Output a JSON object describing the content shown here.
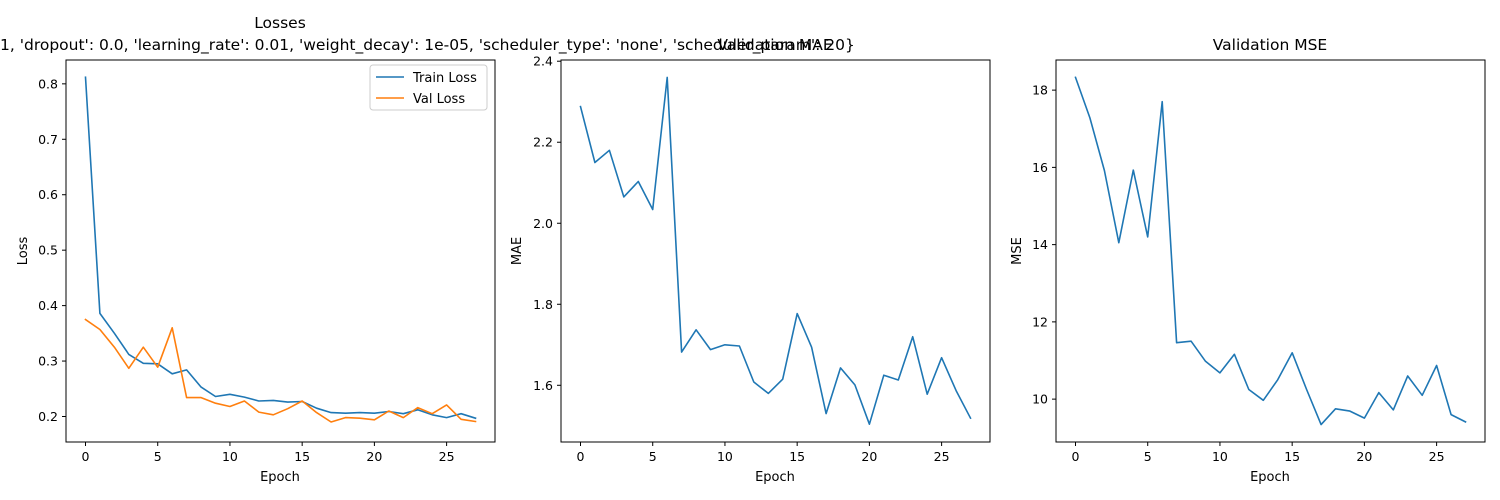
{
  "figure": {
    "overlay_text": "1, 'dropout': 0.0, 'learning_rate': 0.01, 'weight_decay': 1e-05, 'scheduler_type': 'none', 'scheduler_param': 20}"
  },
  "chart_data": [
    {
      "type": "line",
      "title": "Losses",
      "xlabel": "Epoch",
      "ylabel": "Loss",
      "xlim": [
        -1.35,
        28.35
      ],
      "ylim": [
        0.154,
        0.843
      ],
      "xticks": [
        0,
        5,
        10,
        15,
        20,
        25
      ],
      "yticks": [
        0.2,
        0.3,
        0.4,
        0.5,
        0.6,
        0.7,
        0.8
      ],
      "ytick_labels": [
        "0.2",
        "0.3",
        "0.4",
        "0.5",
        "0.6",
        "0.7",
        "0.8"
      ],
      "legend": "top-right",
      "x": [
        0,
        1,
        2,
        3,
        4,
        5,
        6,
        7,
        8,
        9,
        10,
        11,
        12,
        13,
        14,
        15,
        16,
        17,
        18,
        19,
        20,
        21,
        22,
        23,
        24,
        25,
        26,
        27
      ],
      "series": [
        {
          "name": "Train Loss",
          "color": "#1f77b4",
          "values": [
            0.812,
            0.386,
            0.35,
            0.312,
            0.296,
            0.295,
            0.277,
            0.284,
            0.253,
            0.236,
            0.24,
            0.235,
            0.228,
            0.229,
            0.226,
            0.227,
            0.215,
            0.207,
            0.206,
            0.207,
            0.206,
            0.209,
            0.205,
            0.212,
            0.203,
            0.198,
            0.205,
            0.197
          ]
        },
        {
          "name": "Val Loss",
          "color": "#ff7f0e",
          "values": [
            0.375,
            0.357,
            0.325,
            0.287,
            0.325,
            0.289,
            0.36,
            0.234,
            0.234,
            0.224,
            0.218,
            0.228,
            0.208,
            0.203,
            0.214,
            0.228,
            0.207,
            0.19,
            0.198,
            0.197,
            0.194,
            0.21,
            0.198,
            0.216,
            0.205,
            0.221,
            0.195,
            0.191
          ]
        }
      ]
    },
    {
      "type": "line",
      "title": "Validation MAE",
      "xlabel": "Epoch",
      "ylabel": "MAE",
      "xlim": [
        -1.35,
        28.35
      ],
      "ylim": [
        1.46,
        2.403
      ],
      "xticks": [
        0,
        5,
        10,
        15,
        20,
        25
      ],
      "yticks": [
        1.6,
        1.8,
        2.0,
        2.2,
        2.4
      ],
      "ytick_labels": [
        "1.6",
        "1.8",
        "2.0",
        "2.2",
        "2.4"
      ],
      "x": [
        0,
        1,
        2,
        3,
        4,
        5,
        6,
        7,
        8,
        9,
        10,
        11,
        12,
        13,
        14,
        15,
        16,
        17,
        18,
        19,
        20,
        21,
        22,
        23,
        24,
        25,
        26,
        27
      ],
      "series": [
        {
          "color": "#1f77b4",
          "values": [
            2.288,
            2.15,
            2.18,
            2.065,
            2.103,
            2.034,
            2.36,
            1.682,
            1.737,
            1.688,
            1.7,
            1.697,
            1.608,
            1.58,
            1.615,
            1.777,
            1.694,
            1.53,
            1.643,
            1.601,
            1.504,
            1.625,
            1.613,
            1.72,
            1.578,
            1.668,
            1.587,
            1.519
          ]
        }
      ]
    },
    {
      "type": "line",
      "title": "Validation MSE",
      "xlabel": "Epoch",
      "ylabel": "MSE",
      "xlim": [
        -1.35,
        28.35
      ],
      "ylim": [
        8.89,
        18.78
      ],
      "xticks": [
        0,
        5,
        10,
        15,
        20,
        25
      ],
      "yticks": [
        10,
        12,
        14,
        16,
        18
      ],
      "ytick_labels": [
        "10",
        "12",
        "14",
        "16",
        "18"
      ],
      "x": [
        0,
        1,
        2,
        3,
        4,
        5,
        6,
        7,
        8,
        9,
        10,
        11,
        12,
        13,
        14,
        15,
        16,
        17,
        18,
        19,
        20,
        21,
        22,
        23,
        24,
        25,
        26,
        27
      ],
      "series": [
        {
          "color": "#1f77b4",
          "values": [
            18.33,
            17.28,
            15.92,
            14.05,
            15.93,
            14.2,
            17.7,
            11.46,
            11.5,
            10.98,
            10.68,
            11.16,
            10.25,
            9.97,
            10.5,
            11.2,
            10.25,
            9.34,
            9.75,
            9.69,
            9.51,
            10.17,
            9.72,
            10.6,
            10.1,
            10.87,
            9.6,
            9.41
          ]
        }
      ]
    }
  ]
}
